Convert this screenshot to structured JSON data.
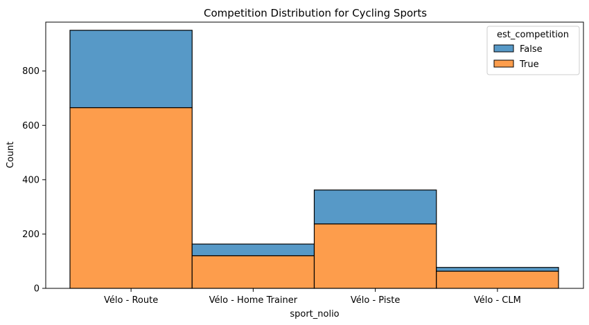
{
  "chart_data": {
    "type": "bar",
    "stacked": true,
    "title": "Competition Distribution for Cycling Sports",
    "xlabel": "sport_nolio",
    "ylabel": "Count",
    "categories": [
      "Vélo - Route",
      "Vélo - Home Trainer",
      "Vélo - Piste",
      "Vélo - CLM"
    ],
    "series": [
      {
        "name": "True",
        "values": [
          665,
          120,
          237,
          63
        ]
      },
      {
        "name": "False",
        "values": [
          285,
          43,
          125,
          14
        ]
      }
    ],
    "ylim": [
      0,
      980
    ],
    "yticks": [
      0,
      200,
      400,
      600,
      800
    ],
    "grid": false,
    "legend": {
      "title": "est_competition",
      "position": "top-right",
      "entries": [
        "False",
        "True"
      ]
    },
    "colors": {
      "True": "#fd9d4c",
      "False": "#5799c7",
      "edge": "#000000"
    }
  }
}
